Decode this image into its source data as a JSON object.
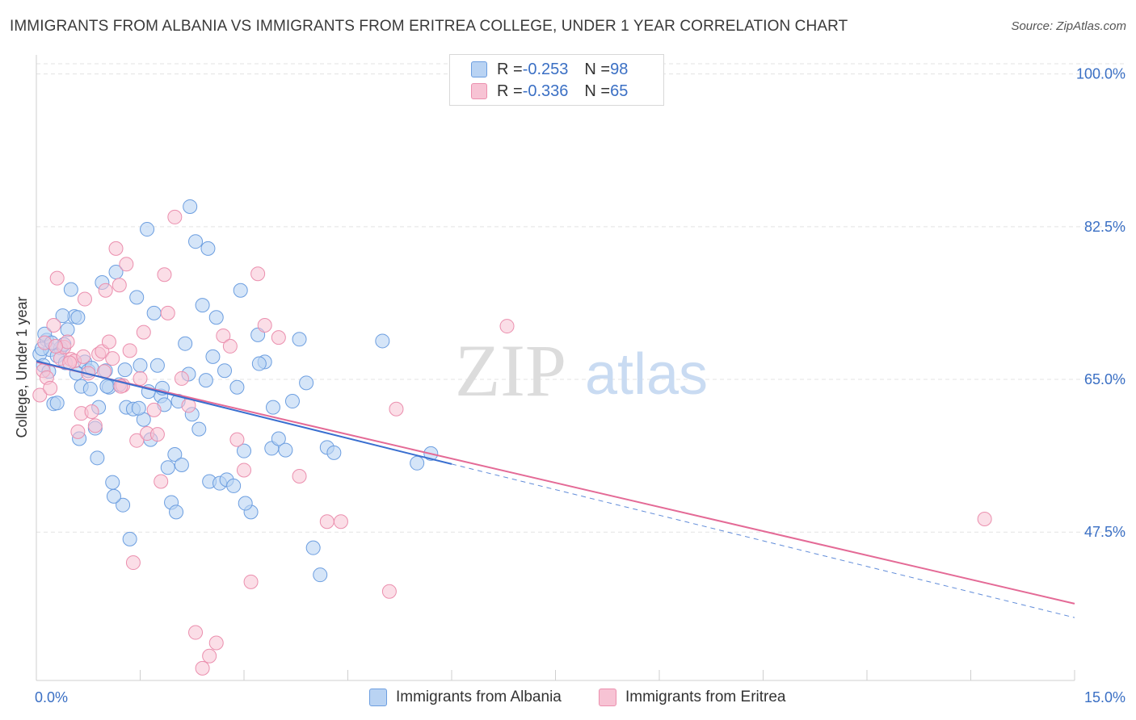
{
  "title": "IMMIGRANTS FROM ALBANIA VS IMMIGRANTS FROM ERITREA COLLEGE, UNDER 1 YEAR CORRELATION CHART",
  "source": "Source: ZipAtlas.com",
  "watermark": {
    "zip": "ZIP",
    "atlas": "atlas"
  },
  "legend_top": {
    "rows": [
      {
        "r_label": "R = ",
        "r_value": "-0.253",
        "n_label": "N = ",
        "n_value": "98"
      },
      {
        "r_label": "R = ",
        "r_value": "-0.336",
        "n_label": "N = ",
        "n_value": "65"
      }
    ]
  },
  "legend_bottom": {
    "albania": "Immigrants from Albania",
    "eritrea": "Immigrants from Eritrea"
  },
  "colors": {
    "albania_fill": "#b9d3f3",
    "albania_stroke": "#6c9ee0",
    "albania_line": "#3a6fd0",
    "eritrea_fill": "#f7c3d4",
    "eritrea_stroke": "#eb8fae",
    "eritrea_line": "#e46a96",
    "axis_label": "#3a6fc4",
    "grid": "#e3e3e3"
  },
  "chart_data": {
    "type": "scatter",
    "xlabel": "",
    "ylabel": "College, Under 1 year",
    "xlim": [
      0,
      15
    ],
    "ylim": [
      30.5,
      102
    ],
    "x_tick_labels": [
      "0.0%",
      "15.0%"
    ],
    "y_ticks": [
      47.5,
      65.0,
      82.5,
      100.0
    ],
    "y_tick_labels": [
      "47.5%",
      "65.0%",
      "82.5%",
      "100.0%"
    ],
    "grid": "horizontal dashed",
    "legend_position": "top-center",
    "series": [
      {
        "name": "Immigrants from Albania",
        "r": -0.253,
        "n": 98,
        "trend": {
          "x0": 0.0,
          "y0": 67.1,
          "x1": 6.0,
          "y1": 55.3,
          "dashed_to_x": 15.0,
          "dashed_y1": 37.7
        },
        "points": [
          [
            0.05,
            67.9
          ],
          [
            0.1,
            66.6
          ],
          [
            0.15,
            69.5
          ],
          [
            0.2,
            68.4
          ],
          [
            0.12,
            70.2
          ],
          [
            0.25,
            62.2
          ],
          [
            0.3,
            62.3
          ],
          [
            0.18,
            65.9
          ],
          [
            0.35,
            68.6
          ],
          [
            0.4,
            69.0
          ],
          [
            0.45,
            70.7
          ],
          [
            0.5,
            75.3
          ],
          [
            0.55,
            72.2
          ],
          [
            0.6,
            72.1
          ],
          [
            0.3,
            67.7
          ],
          [
            0.65,
            64.2
          ],
          [
            0.7,
            67.0
          ],
          [
            0.75,
            66.0
          ],
          [
            0.8,
            66.3
          ],
          [
            0.85,
            59.4
          ],
          [
            0.9,
            61.8
          ],
          [
            0.95,
            76.1
          ],
          [
            1.0,
            66.0
          ],
          [
            1.05,
            64.1
          ],
          [
            1.1,
            53.2
          ],
          [
            1.15,
            77.3
          ],
          [
            1.2,
            64.4
          ],
          [
            1.25,
            50.6
          ],
          [
            1.3,
            61.8
          ],
          [
            1.35,
            46.7
          ],
          [
            1.4,
            61.6
          ],
          [
            1.45,
            74.4
          ],
          [
            1.5,
            66.6
          ],
          [
            1.55,
            60.4
          ],
          [
            1.6,
            82.2
          ],
          [
            1.65,
            58.1
          ],
          [
            1.7,
            72.6
          ],
          [
            1.75,
            66.6
          ],
          [
            1.8,
            63.1
          ],
          [
            1.85,
            62.1
          ],
          [
            1.9,
            54.9
          ],
          [
            1.95,
            50.9
          ],
          [
            2.0,
            56.4
          ],
          [
            2.05,
            62.5
          ],
          [
            2.1,
            55.2
          ],
          [
            2.15,
            69.1
          ],
          [
            2.2,
            65.6
          ],
          [
            2.25,
            61.0
          ],
          [
            2.3,
            80.8
          ],
          [
            2.35,
            59.3
          ],
          [
            2.4,
            73.5
          ],
          [
            2.45,
            64.9
          ],
          [
            2.5,
            53.3
          ],
          [
            2.55,
            67.6
          ],
          [
            2.6,
            72.1
          ],
          [
            2.65,
            53.1
          ],
          [
            2.75,
            53.5
          ],
          [
            2.85,
            52.8
          ],
          [
            2.9,
            64.1
          ],
          [
            2.95,
            75.2
          ],
          [
            3.0,
            56.8
          ],
          [
            3.1,
            49.8
          ],
          [
            3.2,
            70.1
          ],
          [
            3.3,
            67.0
          ],
          [
            3.4,
            57.1
          ],
          [
            3.5,
            58.2
          ],
          [
            3.6,
            56.9
          ],
          [
            3.7,
            62.5
          ],
          [
            3.8,
            69.6
          ],
          [
            3.9,
            64.6
          ],
          [
            4.0,
            45.7
          ],
          [
            4.1,
            42.6
          ],
          [
            4.2,
            57.2
          ],
          [
            4.3,
            56.6
          ],
          [
            5.0,
            69.4
          ],
          [
            5.5,
            55.4
          ],
          [
            5.7,
            56.5
          ],
          [
            0.08,
            68.5
          ],
          [
            0.22,
            69.2
          ],
          [
            0.42,
            66.9
          ],
          [
            0.58,
            65.7
          ],
          [
            0.78,
            63.9
          ],
          [
            1.02,
            64.2
          ],
          [
            1.28,
            66.1
          ],
          [
            1.48,
            61.7
          ],
          [
            1.62,
            63.6
          ],
          [
            1.82,
            64.0
          ],
          [
            2.02,
            49.8
          ],
          [
            2.22,
            84.8
          ],
          [
            2.48,
            80.0
          ],
          [
            2.72,
            66.0
          ],
          [
            3.02,
            50.8
          ],
          [
            3.22,
            66.8
          ],
          [
            3.42,
            61.8
          ],
          [
            0.38,
            72.3
          ],
          [
            0.62,
            58.2
          ],
          [
            0.88,
            56.0
          ],
          [
            1.12,
            51.6
          ]
        ]
      },
      {
        "name": "Immigrants from Eritrea",
        "r": -0.336,
        "n": 65,
        "trend": {
          "x0": 0.0,
          "y0": 67.0,
          "x1": 15.0,
          "y1": 39.3
        },
        "points": [
          [
            0.05,
            63.2
          ],
          [
            0.1,
            66.0
          ],
          [
            0.15,
            65.2
          ],
          [
            0.2,
            64.0
          ],
          [
            0.25,
            71.2
          ],
          [
            0.3,
            76.6
          ],
          [
            0.35,
            67.4
          ],
          [
            0.4,
            68.7
          ],
          [
            0.45,
            69.3
          ],
          [
            0.5,
            67.3
          ],
          [
            0.55,
            67.1
          ],
          [
            0.6,
            59.0
          ],
          [
            0.65,
            61.1
          ],
          [
            0.7,
            74.2
          ],
          [
            0.75,
            65.7
          ],
          [
            0.8,
            61.3
          ],
          [
            0.85,
            59.7
          ],
          [
            0.9,
            67.9
          ],
          [
            0.95,
            68.2
          ],
          [
            1.0,
            75.2
          ],
          [
            1.05,
            69.3
          ],
          [
            1.1,
            67.4
          ],
          [
            1.15,
            80.0
          ],
          [
            1.2,
            75.8
          ],
          [
            1.25,
            64.3
          ],
          [
            1.3,
            78.2
          ],
          [
            1.35,
            68.3
          ],
          [
            1.4,
            44.0
          ],
          [
            1.45,
            58.0
          ],
          [
            1.5,
            65.1
          ],
          [
            1.55,
            70.4
          ],
          [
            1.6,
            58.8
          ],
          [
            1.7,
            61.5
          ],
          [
            1.75,
            58.7
          ],
          [
            1.8,
            53.3
          ],
          [
            1.85,
            77.0
          ],
          [
            1.9,
            72.6
          ],
          [
            2.0,
            83.6
          ],
          [
            2.1,
            65.1
          ],
          [
            2.2,
            62.0
          ],
          [
            2.3,
            36.0
          ],
          [
            2.4,
            31.9
          ],
          [
            2.5,
            33.3
          ],
          [
            2.6,
            34.8
          ],
          [
            2.7,
            70.0
          ],
          [
            2.8,
            68.8
          ],
          [
            2.9,
            58.1
          ],
          [
            3.0,
            54.6
          ],
          [
            3.1,
            41.8
          ],
          [
            3.2,
            77.1
          ],
          [
            3.3,
            71.2
          ],
          [
            3.5,
            69.8
          ],
          [
            3.8,
            53.9
          ],
          [
            4.2,
            48.7
          ],
          [
            4.4,
            48.7
          ],
          [
            5.1,
            40.7
          ],
          [
            5.2,
            61.6
          ],
          [
            6.8,
            71.1
          ],
          [
            13.7,
            49.0
          ],
          [
            0.12,
            69.2
          ],
          [
            0.28,
            68.8
          ],
          [
            0.48,
            66.9
          ],
          [
            0.68,
            67.6
          ],
          [
            0.98,
            65.9
          ],
          [
            1.22,
            64.2
          ]
        ]
      }
    ]
  }
}
